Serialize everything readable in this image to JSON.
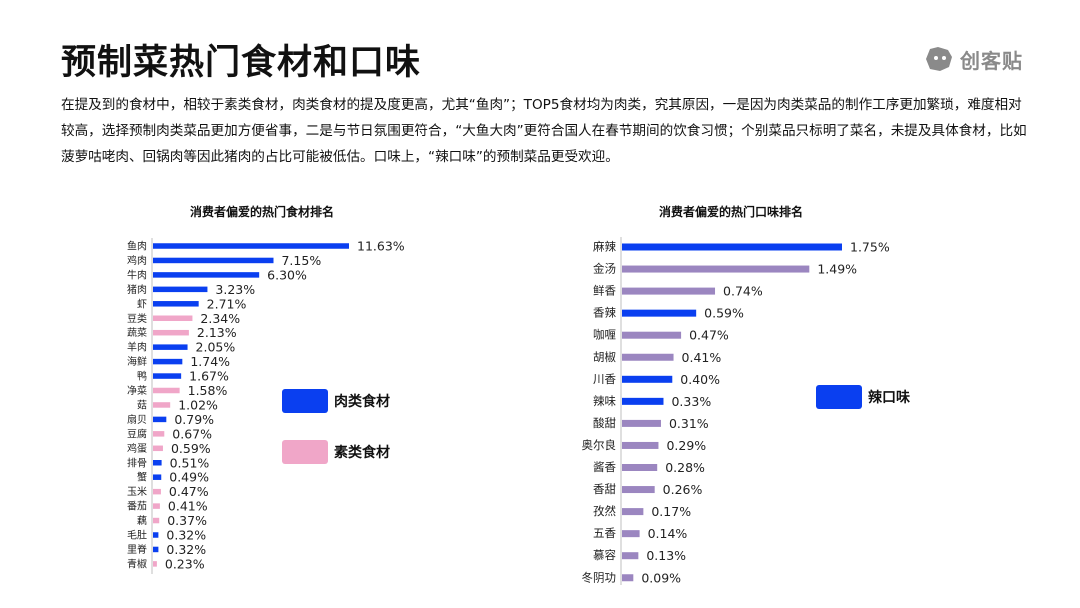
{
  "header": {
    "title": "预制菜热门食材和口味",
    "logo_text": "创客贴",
    "description": "在提及到的食材中，相较于素类食材，肉类食材的提及度更高，尤其“鱼肉”；TOP5食材均为肉类，究其原因，一是因为肉类菜品的制作工序更加繁琐，难度相对较高，选择预制肉类菜品更加方便省事，二是与节日氛围更符合，“大鱼大肉”更符合国人在春节期间的饮食习惯；个别菜品只标明了菜名，未提及具体食材，比如菠萝咕咾肉、回锅肉等因此猪肉的占比可能被低估。口味上，“辣口味”的预制菜品更受欢迎。"
  },
  "colors": {
    "meat": "#0a3ff0",
    "veg": "#f0a6c8",
    "spicy": "#0a3ff0",
    "other": "#9b86c0"
  },
  "chart_data": [
    {
      "type": "bar",
      "orientation": "horizontal",
      "title": "消费者偏爱的热门食材排名",
      "categories": [
        "鱼肉",
        "鸡肉",
        "牛肉",
        "猪肉",
        "虾",
        "豆类",
        "蔬菜",
        "羊肉",
        "海鲜",
        "鸭",
        "净菜",
        "菇",
        "扇贝",
        "豆腐",
        "鸡蛋",
        "排骨",
        "蟹",
        "玉米",
        "番茄",
        "藕",
        "毛肚",
        "里脊",
        "青椒"
      ],
      "values": [
        11.63,
        7.15,
        6.3,
        3.23,
        2.71,
        2.34,
        2.13,
        2.05,
        1.74,
        1.67,
        1.58,
        1.02,
        0.79,
        0.67,
        0.59,
        0.51,
        0.49,
        0.47,
        0.41,
        0.37,
        0.32,
        0.32,
        0.23
      ],
      "labels": [
        "11.63%",
        "7.15%",
        "6.30%",
        "3.23%",
        "2.71%",
        "2.34%",
        "2.13%",
        "2.05%",
        "1.74%",
        "1.67%",
        "1.58%",
        "1.02%",
        "0.79%",
        "0.67%",
        "0.59%",
        "0.51%",
        "0.49%",
        "0.47%",
        "0.41%",
        "0.37%",
        "0.32%",
        "0.32%",
        "0.23%"
      ],
      "groups": [
        "meat",
        "meat",
        "meat",
        "meat",
        "meat",
        "veg",
        "veg",
        "meat",
        "meat",
        "meat",
        "veg",
        "veg",
        "meat",
        "veg",
        "veg",
        "meat",
        "meat",
        "veg",
        "veg",
        "veg",
        "meat",
        "meat",
        "veg"
      ],
      "unit": "%",
      "legend": [
        {
          "key": "meat",
          "label": "肉类食材"
        },
        {
          "key": "veg",
          "label": "素类食材"
        }
      ]
    },
    {
      "type": "bar",
      "orientation": "horizontal",
      "title": "消费者偏爱的热门口味排名",
      "categories": [
        "麻辣",
        "金汤",
        "鲜香",
        "香辣",
        "咖喱",
        "胡椒",
        "川香",
        "辣味",
        "酸甜",
        "奥尔良",
        "酱香",
        "香甜",
        "孜然",
        "五香",
        "慕容",
        "冬阴功"
      ],
      "values": [
        1.75,
        1.49,
        0.74,
        0.59,
        0.47,
        0.41,
        0.4,
        0.33,
        0.31,
        0.29,
        0.28,
        0.26,
        0.17,
        0.14,
        0.13,
        0.09
      ],
      "labels": [
        "1.75%",
        "1.49%",
        "0.74%",
        "0.59%",
        "0.47%",
        "0.41%",
        "0.40%",
        "0.33%",
        "0.31%",
        "0.29%",
        "0.28%",
        "0.26%",
        "0.17%",
        "0.14%",
        "0.13%",
        "0.09%"
      ],
      "groups": [
        "spicy",
        "other",
        "other",
        "spicy",
        "other",
        "other",
        "spicy",
        "spicy",
        "other",
        "other",
        "other",
        "other",
        "other",
        "other",
        "other",
        "other"
      ],
      "unit": "%",
      "legend": [
        {
          "key": "spicy",
          "label": "辣口味"
        }
      ]
    }
  ]
}
